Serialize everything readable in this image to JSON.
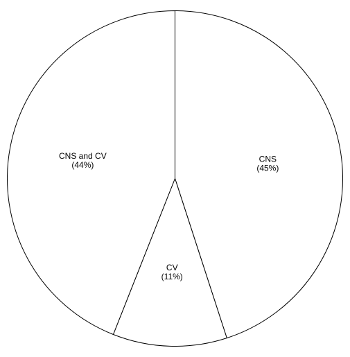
{
  "chart_data": {
    "type": "pie",
    "title": "",
    "slices": [
      {
        "label": "CNS",
        "value": 45,
        "value_label": "(45%)"
      },
      {
        "label": "CV",
        "value": 11,
        "value_label": "(11%)"
      },
      {
        "label": "CNS and CV",
        "value": 44,
        "value_label": "(44%)"
      }
    ],
    "start_angle": "12 o'clock",
    "direction": "clockwise",
    "slice_fill": "#ffffff",
    "stroke_color": "#000000",
    "legend": "none"
  }
}
